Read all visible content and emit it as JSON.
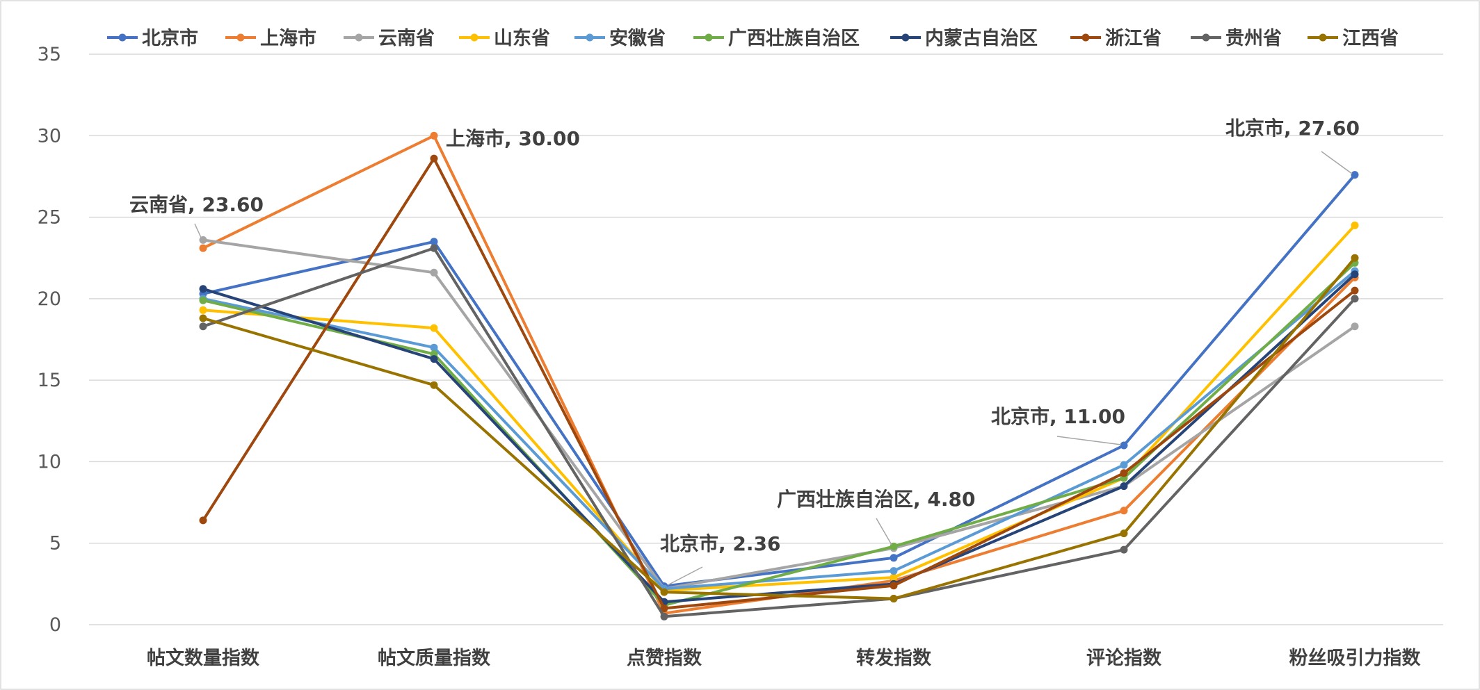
{
  "chart_data": {
    "type": "line",
    "categories": [
      "帖文数量指数",
      "帖文质量指数",
      "点赞指数",
      "转发指数",
      "评论指数",
      "粉丝吸引力指数"
    ],
    "ylim": [
      0,
      35
    ],
    "yticks": [
      0,
      5,
      10,
      15,
      20,
      25,
      30,
      35
    ],
    "grid": true,
    "legend_position": "top",
    "series": [
      {
        "name": "北京市",
        "color": "#4472c4",
        "values": [
          20.3,
          23.5,
          2.36,
          4.1,
          11.0,
          27.6
        ]
      },
      {
        "name": "上海市",
        "color": "#ed7d31",
        "values": [
          23.1,
          30.0,
          0.7,
          2.7,
          7.0,
          21.3
        ]
      },
      {
        "name": "云南省",
        "color": "#a5a5a5",
        "values": [
          23.6,
          21.6,
          2.2,
          4.7,
          8.5,
          18.3
        ]
      },
      {
        "name": "山东省",
        "color": "#ffc000",
        "values": [
          19.3,
          18.2,
          2.1,
          2.9,
          9.0,
          24.5
        ]
      },
      {
        "name": "安徽省",
        "color": "#5b9bd5",
        "values": [
          20.0,
          17.0,
          2.2,
          3.3,
          9.8,
          21.7
        ]
      },
      {
        "name": "广西壮族自治区",
        "color": "#70ad47",
        "values": [
          19.9,
          16.6,
          1.2,
          4.8,
          9.0,
          22.2
        ]
      },
      {
        "name": "内蒙古自治区",
        "color": "#264478",
        "values": [
          20.6,
          16.3,
          1.4,
          2.5,
          8.5,
          21.5
        ]
      },
      {
        "name": "浙江省",
        "color": "#9e480e",
        "values": [
          6.4,
          28.6,
          1.0,
          2.4,
          9.3,
          20.5
        ]
      },
      {
        "name": "贵州省",
        "color": "#636363",
        "values": [
          18.3,
          23.1,
          0.5,
          1.6,
          4.6,
          20.0
        ]
      },
      {
        "name": "江西省",
        "color": "#997300",
        "values": [
          18.8,
          14.7,
          2.0,
          1.6,
          5.6,
          22.5
        ]
      }
    ],
    "annotations": [
      {
        "text": "云南省, 23.60",
        "series": 2,
        "point": 0
      },
      {
        "text": "上海市, 30.00",
        "series": 1,
        "point": 1
      },
      {
        "text": "北京市, 2.36",
        "series": 0,
        "point": 2
      },
      {
        "text": "广西壮族自治区, 4.80",
        "series": 5,
        "point": 3
      },
      {
        "text": "北京市, 11.00",
        "series": 0,
        "point": 4
      },
      {
        "text": "北京市, 27.60",
        "series": 0,
        "point": 5
      }
    ]
  }
}
